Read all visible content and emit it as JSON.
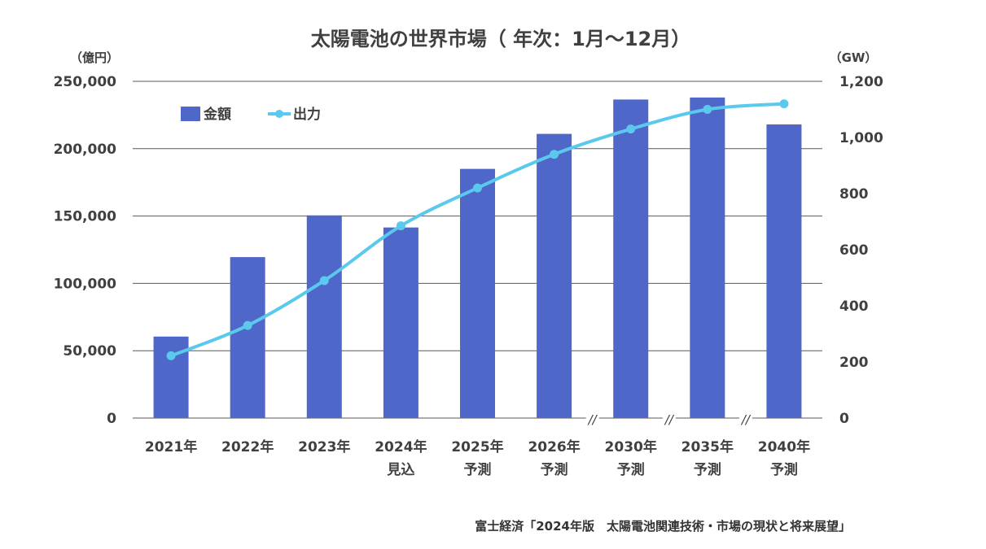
{
  "colors": {
    "bar": "#4f67c9",
    "line": "#5bc8ee",
    "grid": "#595959",
    "text": "#404040"
  },
  "chart_data": {
    "type": "bar",
    "title": "太陽電池の世界市場（ 年次：1月～12月）",
    "y_left_unit": "（億円）",
    "y_right_unit": "（GW）",
    "y_left_ticks": [
      "0",
      "50,000",
      "100,000",
      "150,000",
      "200,000",
      "250,000"
    ],
    "y_right_ticks": [
      "0",
      "200",
      "400",
      "600",
      "800",
      "1,000",
      "1,200"
    ],
    "ylim_left": [
      0,
      250000
    ],
    "ylim_right": [
      0,
      1200
    ],
    "categories": [
      [
        "2021年"
      ],
      [
        "2022年"
      ],
      [
        "2023年"
      ],
      [
        "2024年",
        "見込"
      ],
      [
        "2025年",
        "予測"
      ],
      [
        "2026年",
        "予測"
      ],
      [
        "2030年",
        "予測"
      ],
      [
        "2035年",
        "予測"
      ],
      [
        "2040年",
        "予測"
      ]
    ],
    "axis_breaks_after_index": [
      5,
      6,
      7
    ],
    "axis_break_mark": "//",
    "legend_position": "top-left",
    "grid": true,
    "series": [
      {
        "name": "金額",
        "type": "bar",
        "axis": "left",
        "values": [
          60500,
          119500,
          150500,
          141500,
          185000,
          211000,
          236500,
          238000,
          218000
        ]
      },
      {
        "name": "出力",
        "type": "line",
        "axis": "right",
        "values": [
          222,
          330,
          490,
          685,
          820,
          940,
          1030,
          1100,
          1120
        ]
      }
    ]
  },
  "source": "富士経済「2024年版　太陽電池関連技術・市場の現状と将来展望」"
}
